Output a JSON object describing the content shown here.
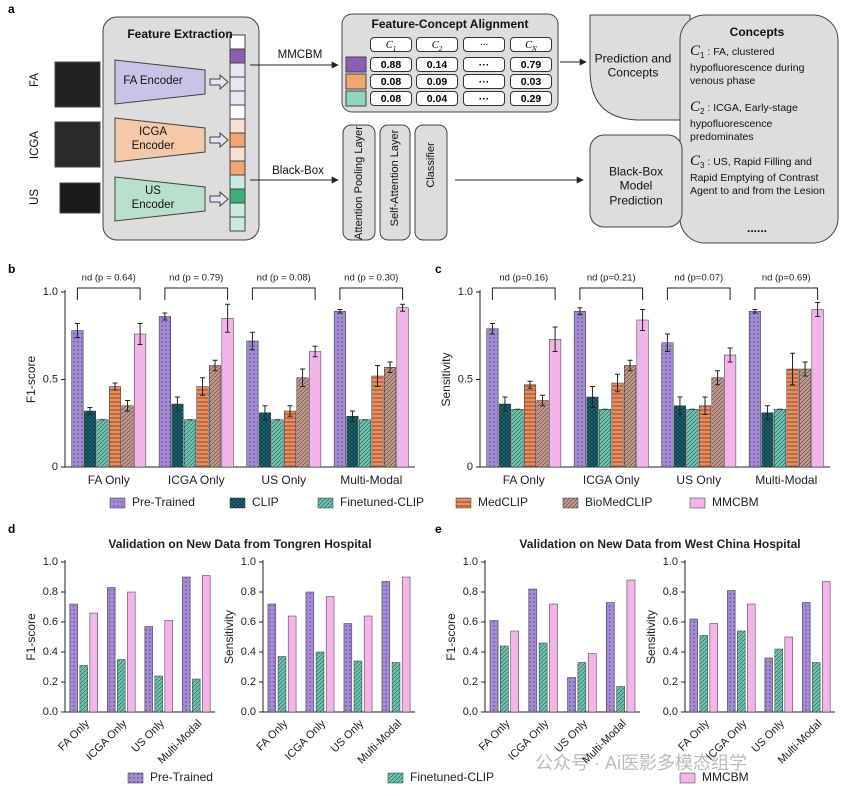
{
  "panel_labels": [
    "a",
    "b",
    "c",
    "d",
    "e"
  ],
  "watermark": "公众号 · Ai医影多模态组学",
  "diagram": {
    "modalities": [
      "FA",
      "ICGA",
      "US"
    ],
    "feature_extraction": {
      "title": "Feature Extraction",
      "encoders": [
        "FA Encoder",
        "ICGA Encoder",
        "US Encoder"
      ]
    },
    "branches": [
      "MMCBM",
      "Black-Box"
    ],
    "alignment": {
      "title": "Feature-Concept Alignment",
      "header": [
        {
          "letter": "C",
          "sub": "1"
        },
        {
          "letter": "C",
          "sub": "2"
        },
        {
          "letter": "···",
          "sub": ""
        },
        {
          "letter": "C",
          "sub": "N"
        }
      ],
      "rows": [
        [
          0.88,
          0.14,
          "···",
          0.79
        ],
        [
          0.08,
          0.09,
          "···",
          0.03
        ],
        [
          0.08,
          0.04,
          "···",
          0.29
        ]
      ]
    },
    "layers": [
      "Attention Pooling Layer",
      "Self-Attention Layer",
      "Classifier"
    ],
    "outputs": [
      "Prediction and Concepts",
      "Black-Box Model Prediction"
    ],
    "concepts": {
      "title": "Concepts",
      "items": [
        {
          "letter": "C",
          "sub": "1",
          "text": ": FA, clustered hypofluorescence during venous phase"
        },
        {
          "letter": "C",
          "sub": "2",
          "text": ": ICGA, Early-stage hypofluorescence predominates"
        },
        {
          "letter": "C",
          "sub": "3",
          "text": ": US, Rapid Filling and Rapid Emptying of Contrast Agent to and from the Lesion"
        }
      ],
      "ellipsis": "......"
    }
  },
  "chart_data": [
    {
      "type": "bar",
      "ylabel": "F1-score",
      "legend": "bottom",
      "categories": [
        "FA Only",
        "ICGA Only",
        "US Only",
        "Multi-Modal"
      ],
      "ylim": [
        0,
        1
      ],
      "yticks": [
        0,
        0.5,
        {
          "value": 1,
          "label": "1.0"
        }
      ],
      "annotations": [
        "nd (p = 0.64)",
        "nd (p = 0.79)",
        "nd (p = 0.08)",
        "nd (p = 0.30)"
      ],
      "series": [
        {
          "name": "Pre-Trained",
          "color": "#a48ad6",
          "pattern": "dots",
          "values": [
            0.78,
            0.86,
            0.72,
            0.89
          ],
          "errors": [
            0.04,
            0.02,
            0.05,
            0.01
          ]
        },
        {
          "name": "CLIP",
          "color": "#1f6f80",
          "pattern": "grid",
          "values": [
            0.32,
            0.36,
            0.31,
            0.29
          ],
          "errors": [
            0.02,
            0.04,
            0.04,
            0.03
          ]
        },
        {
          "name": "Finetuned-CLIP",
          "color": "#6ec6b5",
          "pattern": "diagonal",
          "values": [
            0.27,
            0.27,
            0.27,
            0.27
          ],
          "errors": [
            0,
            0,
            0,
            0
          ]
        },
        {
          "name": "MedCLIP",
          "color": "#ec8d5d",
          "pattern": "horizontal",
          "values": [
            0.46,
            0.46,
            0.32,
            0.52
          ],
          "errors": [
            0.02,
            0.05,
            0.03,
            0.06
          ]
        },
        {
          "name": "BioMedCLIP",
          "color": "#c79a90",
          "pattern": "diagonal",
          "values": [
            0.35,
            0.58,
            0.51,
            0.57
          ],
          "errors": [
            0.03,
            0.03,
            0.05,
            0.03
          ]
        },
        {
          "name": "MMCBM",
          "color": "#f3b4ea",
          "pattern": "none",
          "values": [
            0.76,
            0.85,
            0.66,
            0.91
          ],
          "errors": [
            0.06,
            0.08,
            0.03,
            0.02
          ]
        }
      ]
    },
    {
      "type": "bar",
      "ylabel": "Sensitivity",
      "categories": [
        "FA Only",
        "ICGA Only",
        "US Only",
        "Multi-Modal"
      ],
      "ylim": [
        0,
        1
      ],
      "yticks": [
        0,
        0.5,
        {
          "value": 1,
          "label": "1.0"
        }
      ],
      "annotations": [
        "nd (p=0.16)",
        "nd (p=0.21)",
        "nd (p=0.07)",
        "nd (p=0.69)"
      ],
      "series": [
        {
          "name": "Pre-Trained",
          "color": "#a48ad6",
          "pattern": "dots",
          "values": [
            0.79,
            0.89,
            0.71,
            0.89
          ],
          "errors": [
            0.03,
            0.02,
            0.05,
            0.01
          ]
        },
        {
          "name": "CLIP",
          "color": "#1f6f80",
          "pattern": "grid",
          "values": [
            0.36,
            0.4,
            0.35,
            0.31
          ],
          "errors": [
            0.04,
            0.06,
            0.05,
            0.04
          ]
        },
        {
          "name": "Finetuned-CLIP",
          "color": "#6ec6b5",
          "pattern": "diagonal",
          "values": [
            0.33,
            0.33,
            0.33,
            0.33
          ],
          "errors": [
            0,
            0,
            0,
            0
          ]
        },
        {
          "name": "MedCLIP",
          "color": "#ec8d5d",
          "pattern": "horizontal",
          "values": [
            0.47,
            0.48,
            0.35,
            0.56
          ],
          "errors": [
            0.02,
            0.05,
            0.05,
            0.09
          ]
        },
        {
          "name": "BioMedCLIP",
          "color": "#c79a90",
          "pattern": "diagonal",
          "values": [
            0.38,
            0.58,
            0.51,
            0.56
          ],
          "errors": [
            0.03,
            0.03,
            0.04,
            0.04
          ]
        },
        {
          "name": "MMCBM",
          "color": "#f3b4ea",
          "pattern": "none",
          "values": [
            0.73,
            0.84,
            0.64,
            0.9
          ],
          "errors": [
            0.07,
            0.06,
            0.04,
            0.04
          ]
        }
      ]
    },
    {
      "type": "bar",
      "title": "Validation on New Data from Tongren Hospital",
      "ylabel": "F1-score",
      "legend": "bottom",
      "categories": [
        "FA Only",
        "ICGA Only",
        "US Only",
        "Multi-Modal"
      ],
      "ylim": [
        0,
        1
      ],
      "yticks": [
        {
          "value": 0,
          "label": "0.0"
        },
        0.2,
        0.4,
        0.6,
        0.8,
        {
          "value": 1,
          "label": "1.0"
        }
      ],
      "series": [
        {
          "name": "Pre-Trained",
          "color": "#a48ad6",
          "pattern": "dots",
          "values": [
            0.72,
            0.83,
            0.57,
            0.9
          ]
        },
        {
          "name": "Finetuned-CLIP",
          "color": "#6ec6b5",
          "pattern": "diagonal",
          "values": [
            0.31,
            0.35,
            0.24,
            0.22
          ]
        },
        {
          "name": "MMCBM",
          "color": "#f3b4ea",
          "pattern": "none",
          "values": [
            0.66,
            0.8,
            0.61,
            0.91
          ]
        }
      ]
    },
    {
      "type": "bar",
      "ylabel": "Sensitivity",
      "categories": [
        "FA Only",
        "ICGA Only",
        "US Only",
        "Multi-Modal"
      ],
      "ylim": [
        0,
        1
      ],
      "yticks": [
        {
          "value": 0,
          "label": "0.0"
        },
        0.2,
        0.4,
        0.6,
        0.8,
        {
          "value": 1,
          "label": "1.0"
        }
      ],
      "series": [
        {
          "name": "Pre-Trained",
          "color": "#a48ad6",
          "pattern": "dots",
          "values": [
            0.72,
            0.8,
            0.59,
            0.87
          ]
        },
        {
          "name": "Finetuned-CLIP",
          "color": "#6ec6b5",
          "pattern": "diagonal",
          "values": [
            0.37,
            0.4,
            0.34,
            0.33
          ]
        },
        {
          "name": "MMCBM",
          "color": "#f3b4ea",
          "pattern": "none",
          "values": [
            0.64,
            0.77,
            0.64,
            0.9
          ]
        }
      ]
    },
    {
      "type": "bar",
      "title": "Validation on New Data from West China Hospital",
      "ylabel": "F1-score",
      "categories": [
        "FA Only",
        "ICGA Only",
        "US Only",
        "Multi-Modal"
      ],
      "ylim": [
        0,
        1
      ],
      "yticks": [
        {
          "value": 0,
          "label": "0.0"
        },
        0.2,
        0.4,
        0.6,
        0.8,
        {
          "value": 1,
          "label": "1.0"
        }
      ],
      "series": [
        {
          "name": "Pre-Trained",
          "color": "#a48ad6",
          "pattern": "dots",
          "values": [
            0.61,
            0.82,
            0.23,
            0.73
          ]
        },
        {
          "name": "Finetuned-CLIP",
          "color": "#6ec6b5",
          "pattern": "diagonal",
          "values": [
            0.44,
            0.46,
            0.33,
            0.17
          ]
        },
        {
          "name": "MMCBM",
          "color": "#f3b4ea",
          "pattern": "none",
          "values": [
            0.54,
            0.72,
            0.39,
            0.88
          ]
        }
      ]
    },
    {
      "type": "bar",
      "ylabel": "Sensitivity",
      "categories": [
        "FA Only",
        "ICGA Only",
        "US Only",
        "Multi-Modal"
      ],
      "ylim": [
        0,
        1
      ],
      "yticks": [
        {
          "value": 0,
          "label": "0.0"
        },
        0.2,
        0.4,
        0.6,
        0.8,
        {
          "value": 1,
          "label": "1.0"
        }
      ],
      "series": [
        {
          "name": "Pre-Trained",
          "color": "#a48ad6",
          "pattern": "dots",
          "values": [
            0.62,
            0.81,
            0.36,
            0.73
          ]
        },
        {
          "name": "Finetuned-CLIP",
          "color": "#6ec6b5",
          "pattern": "diagonal",
          "values": [
            0.51,
            0.54,
            0.42,
            0.33
          ]
        },
        {
          "name": "MMCBM",
          "color": "#f3b4ea",
          "pattern": "none",
          "values": [
            0.59,
            0.72,
            0.5,
            0.87
          ]
        }
      ]
    }
  ]
}
